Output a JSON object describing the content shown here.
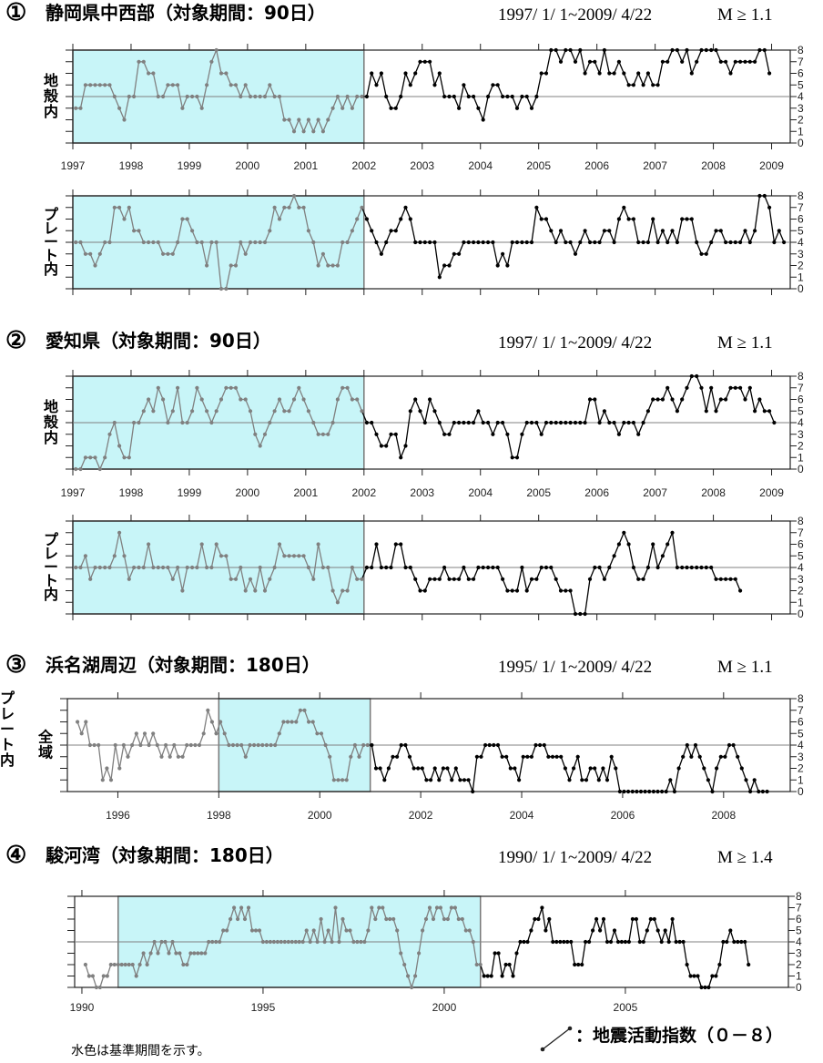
{
  "legend_label": "：地震活動指数（０－８）",
  "footnote": "水色は基準期間を示す。",
  "colors": {
    "baseline_fill": "#c8f5f8",
    "pre_line": "#808080",
    "post_line": "#000000",
    "ref_line": "#808080"
  },
  "sections": [
    {
      "num": "①",
      "title": "静岡県中西部（対象期間：90日）",
      "range": "1997/ 1/ 1~2009/ 4/22",
      "mag": "M ≥ 1.1",
      "xticks": [
        "1997",
        "1998",
        "1999",
        "2000",
        "2001",
        "2002",
        "2003",
        "2004",
        "2005",
        "2006",
        "2007",
        "2008",
        "2009"
      ]
    },
    {
      "num": "②",
      "title": "愛知県（対象期間：90日）",
      "range": "1997/ 1/ 1~2009/ 4/22",
      "mag": "M ≥ 1.1",
      "xticks": [
        "1997",
        "1998",
        "1999",
        "2000",
        "2001",
        "2002",
        "2003",
        "2004",
        "2005",
        "2006",
        "2007",
        "2008",
        "2009"
      ]
    },
    {
      "num": "③",
      "title": "浜名湖周辺（対象期間：180日）",
      "range": "1995/ 1/ 1~2009/ 4/22",
      "mag": "M ≥ 1.1",
      "xticks": [
        "1996",
        "1998",
        "2000",
        "2002",
        "2004",
        "2006",
        "2008"
      ]
    },
    {
      "num": "④",
      "title": "駿河湾（対象期間：180日）",
      "range": "1990/ 1/ 1~2009/ 4/22",
      "mag": "M ≥ 1.4",
      "xticks": [
        "1990",
        "1995",
        "2000",
        "2005"
      ]
    }
  ],
  "chart_data": [
    {
      "type": "line",
      "section": "①",
      "panel_label": "地殻内",
      "xlim": [
        1997,
        2009.32
      ],
      "ylim": [
        0,
        8
      ],
      "yticks": [
        "0",
        "1",
        "2",
        "3",
        "4",
        "5",
        "6",
        "7",
        "8"
      ],
      "ref_y": 4,
      "baseline_period": [
        1997,
        2002
      ],
      "x_start": 1997.05,
      "x_step": 0.0833,
      "values": [
        3,
        3,
        5,
        5,
        5,
        5,
        5,
        5,
        4,
        3,
        2,
        4,
        4,
        7,
        7,
        6,
        6,
        4,
        4,
        5,
        5,
        5,
        3,
        4,
        4,
        4,
        3,
        5,
        7,
        8,
        6,
        6,
        5,
        5,
        4,
        5,
        4,
        4,
        4,
        4,
        5,
        4,
        4,
        2,
        2,
        1,
        2,
        1,
        2,
        1,
        2,
        1,
        2,
        3,
        4,
        3,
        4,
        3,
        4,
        4,
        4,
        6,
        5,
        6,
        4,
        3,
        3,
        4,
        6,
        5,
        6,
        7,
        7,
        7,
        5,
        6,
        4,
        4,
        4,
        3,
        5,
        4,
        4,
        3,
        2,
        4,
        5,
        5,
        4,
        4,
        4,
        3,
        4,
        4,
        3,
        4,
        6,
        6,
        8,
        8,
        7,
        8,
        8,
        7,
        8,
        6,
        7,
        7,
        6,
        8,
        6,
        6,
        7,
        6,
        5,
        5,
        6,
        5,
        6,
        5,
        5,
        7,
        7,
        8,
        8,
        7,
        8,
        6,
        7,
        8,
        8,
        8,
        8,
        7,
        7,
        6,
        7,
        7,
        7,
        7,
        7,
        8,
        8,
        6
      ]
    },
    {
      "type": "line",
      "section": "①",
      "panel_label": "プレート内",
      "xlim": [
        1997,
        2009.32
      ],
      "ylim": [
        0,
        8
      ],
      "yticks": [
        "0",
        "1",
        "2",
        "3",
        "4",
        "5",
        "6",
        "7",
        "8"
      ],
      "ref_y": 4,
      "baseline_period": [
        1997,
        2002
      ],
      "x_start": 1997.05,
      "x_step": 0.0833,
      "values": [
        4,
        4,
        3,
        3,
        2,
        3,
        4,
        4,
        7,
        7,
        6,
        7,
        5,
        5,
        4,
        4,
        4,
        4,
        3,
        3,
        3,
        4,
        6,
        6,
        5,
        4,
        4,
        2,
        4,
        4,
        0,
        0,
        2,
        2,
        4,
        3,
        4,
        4,
        4,
        4,
        5,
        7,
        6,
        7,
        7,
        8,
        7,
        7,
        5,
        4,
        2,
        3,
        2,
        2,
        2,
        4,
        4,
        5,
        6,
        7,
        6,
        5,
        4,
        3,
        4,
        5,
        5,
        6,
        7,
        6,
        4,
        4,
        4,
        4,
        4,
        1,
        2,
        2,
        3,
        3,
        4,
        4,
        4,
        4,
        4,
        4,
        4,
        2,
        3,
        2,
        4,
        4,
        4,
        4,
        4,
        7,
        6,
        6,
        5,
        4,
        5,
        4,
        4,
        3,
        4,
        5,
        4,
        4,
        4,
        5,
        5,
        4,
        6,
        7,
        6,
        6,
        4,
        4,
        4,
        6,
        4,
        5,
        4,
        5,
        4,
        6,
        6,
        6,
        4,
        3,
        3,
        4,
        5,
        5,
        4,
        4,
        4,
        4,
        5,
        4,
        5,
        8,
        8,
        7,
        4,
        5,
        4
      ]
    },
    {
      "type": "line",
      "section": "②",
      "panel_label": "地殻内",
      "xlim": [
        1997,
        2009.32
      ],
      "ylim": [
        0,
        8
      ],
      "yticks": [
        "0",
        "1",
        "2",
        "3",
        "4",
        "5",
        "6",
        "7",
        "8"
      ],
      "ref_y": 4,
      "baseline_period": [
        1997,
        2002
      ],
      "x_start": 1997.05,
      "x_step": 0.0833,
      "values": [
        0,
        0,
        1,
        1,
        1,
        0,
        1,
        3,
        4,
        2,
        1,
        1,
        4,
        4,
        5,
        6,
        5,
        7,
        6,
        4,
        5,
        7,
        4,
        4,
        5,
        7,
        6,
        5,
        4,
        5,
        6,
        7,
        7,
        7,
        6,
        6,
        5,
        3,
        2,
        3,
        4,
        5,
        6,
        5,
        5,
        6,
        7,
        6,
        5,
        4,
        3,
        3,
        3,
        4,
        6,
        7,
        7,
        6,
        6,
        5,
        4,
        4,
        3,
        2,
        2,
        3,
        3,
        1,
        2,
        5,
        6,
        5,
        4,
        6,
        5,
        4,
        3,
        3,
        4,
        4,
        4,
        4,
        4,
        5,
        4,
        4,
        3,
        4,
        4,
        3,
        1,
        1,
        3,
        4,
        4,
        4,
        3,
        4,
        4,
        4,
        4,
        4,
        4,
        4,
        4,
        4,
        6,
        6,
        4,
        5,
        4,
        4,
        3,
        4,
        4,
        4,
        3,
        4,
        5,
        6,
        6,
        6,
        7,
        6,
        5,
        6,
        7,
        8,
        8,
        7,
        5,
        7,
        5,
        6,
        6,
        7,
        7,
        7,
        6,
        7,
        5,
        6,
        5,
        5,
        4
      ]
    },
    {
      "type": "line",
      "section": "②",
      "panel_label": "プレート内",
      "xlim": [
        1997,
        2009.32
      ],
      "ylim": [
        0,
        8
      ],
      "yticks": [
        "0",
        "1",
        "2",
        "3",
        "4",
        "5",
        "6",
        "7",
        "8"
      ],
      "ref_y": 4,
      "baseline_period": [
        1997,
        2002
      ],
      "x_start": 1997.05,
      "x_step": 0.0833,
      "values": [
        4,
        4,
        5,
        3,
        4,
        4,
        4,
        4,
        5,
        7,
        5,
        3,
        4,
        4,
        4,
        6,
        4,
        4,
        4,
        4,
        3,
        4,
        2,
        4,
        4,
        4,
        6,
        4,
        4,
        6,
        5,
        5,
        3,
        3,
        4,
        2,
        3,
        2,
        4,
        2,
        3,
        4,
        6,
        5,
        5,
        5,
        5,
        5,
        4,
        3,
        6,
        4,
        4,
        2,
        1,
        2,
        2,
        4,
        3,
        3,
        4,
        4,
        6,
        4,
        4,
        4,
        6,
        6,
        4,
        4,
        3,
        2,
        2,
        3,
        3,
        3,
        4,
        3,
        3,
        3,
        4,
        3,
        3,
        4,
        4,
        4,
        4,
        4,
        3,
        2,
        2,
        2,
        4,
        2,
        3,
        3,
        4,
        4,
        4,
        3,
        2,
        2,
        2,
        0,
        0,
        0,
        3,
        4,
        4,
        3,
        4,
        5,
        6,
        7,
        6,
        4,
        3,
        3,
        4,
        6,
        4,
        5,
        6,
        7,
        4,
        4,
        4,
        4,
        4,
        4,
        4,
        4,
        3,
        3,
        3,
        3,
        3,
        2
      ]
    },
    {
      "type": "line",
      "section": "③",
      "panel_label": "全域",
      "side_label": "プレート内",
      "xlim": [
        1995,
        2009.32
      ],
      "ylim": [
        0,
        8
      ],
      "yticks": [
        "0",
        "1",
        "2",
        "3",
        "4",
        "5",
        "6",
        "7",
        "8"
      ],
      "ref_y": 4,
      "baseline_period": [
        1998,
        2001
      ],
      "x_start": 1995.2,
      "x_step": 0.0833,
      "values": [
        6,
        5,
        6,
        4,
        4,
        4,
        1,
        2,
        1,
        4,
        2,
        4,
        3,
        4,
        5,
        4,
        5,
        4,
        5,
        4,
        3,
        4,
        3,
        4,
        3,
        3,
        4,
        4,
        4,
        4,
        5,
        7,
        6,
        5,
        6,
        5,
        4,
        4,
        4,
        4,
        3,
        4,
        4,
        4,
        4,
        4,
        4,
        4,
        5,
        6,
        6,
        6,
        6,
        7,
        7,
        6,
        6,
        5,
        5,
        4,
        3,
        1,
        1,
        1,
        1,
        3,
        4,
        3,
        4,
        4,
        4,
        2,
        2,
        1,
        2,
        3,
        3,
        4,
        4,
        3,
        2,
        2,
        2,
        1,
        1,
        2,
        1,
        2,
        2,
        1,
        2,
        1,
        1,
        1,
        0,
        3,
        3,
        4,
        4,
        4,
        4,
        3,
        3,
        2,
        2,
        1,
        3,
        3,
        3,
        4,
        4,
        4,
        3,
        3,
        3,
        3,
        2,
        1,
        2,
        3,
        1,
        1,
        2,
        2,
        1,
        2,
        1,
        3,
        2,
        0,
        0,
        0,
        0,
        0,
        0,
        0,
        0,
        0,
        0,
        0,
        0,
        1,
        0,
        2,
        3,
        4,
        3,
        4,
        3,
        2,
        1,
        0,
        2,
        3,
        3,
        4,
        4,
        3,
        2,
        1,
        0,
        1,
        0,
        0,
        0
      ]
    },
    {
      "type": "line",
      "section": "④",
      "panel_label": "",
      "xlim": [
        1989.8,
        2009.5
      ],
      "ylim": [
        0,
        8
      ],
      "yticks": [
        "0",
        "1",
        "2",
        "3",
        "4",
        "5",
        "6",
        "7",
        "8"
      ],
      "ref_y": 4,
      "baseline_period": [
        1991,
        2001
      ],
      "x_start": 1990.1,
      "x_step": 0.1,
      "values": [
        2,
        1,
        1,
        0,
        0,
        1,
        1,
        2,
        2,
        2,
        2,
        2,
        2,
        2,
        1,
        2,
        3,
        2,
        3,
        4,
        3,
        4,
        4,
        3,
        4,
        3,
        3,
        2,
        2,
        3,
        3,
        3,
        3,
        3,
        4,
        4,
        4,
        4,
        5,
        5,
        6,
        7,
        6,
        7,
        6,
        7,
        5,
        5,
        5,
        4,
        4,
        4,
        4,
        4,
        4,
        4,
        4,
        4,
        4,
        4,
        4,
        5,
        4,
        5,
        4,
        6,
        4,
        5,
        4,
        7,
        4,
        6,
        5,
        5,
        4,
        4,
        4,
        4,
        5,
        7,
        6,
        7,
        7,
        6,
        6,
        6,
        5,
        3,
        2,
        1,
        0,
        1,
        3,
        5,
        6,
        7,
        6,
        7,
        7,
        6,
        6,
        7,
        7,
        6,
        6,
        5,
        5,
        4,
        2,
        2,
        1,
        1,
        1,
        3,
        3,
        1,
        2,
        2,
        1,
        3,
        4,
        4,
        4,
        5,
        6,
        6,
        7,
        5,
        6,
        4,
        4,
        4,
        4,
        4,
        4,
        2,
        2,
        2,
        4,
        4,
        5,
        6,
        5,
        6,
        4,
        4,
        5,
        4,
        4,
        4,
        4,
        6,
        6,
        4,
        4,
        5,
        6,
        6,
        5,
        4,
        5,
        4,
        6,
        4,
        4,
        4,
        2,
        1,
        1,
        1,
        0,
        0,
        0,
        1,
        1,
        2,
        4,
        4,
        5,
        4,
        4,
        4,
        4,
        2
      ]
    }
  ]
}
